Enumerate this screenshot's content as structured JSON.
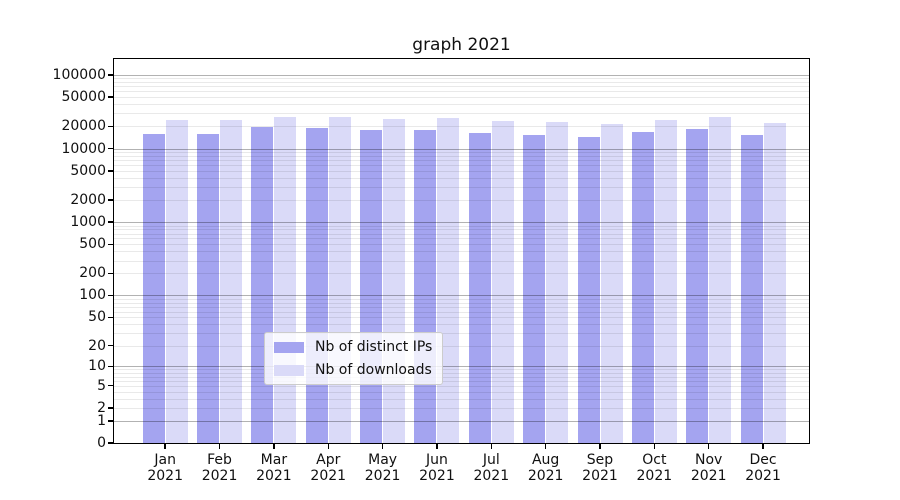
{
  "chart_data": {
    "type": "bar",
    "title": "graph 2021",
    "categories": [
      "Jan",
      "Feb",
      "Mar",
      "Apr",
      "May",
      "Jun",
      "Jul",
      "Aug",
      "Sep",
      "Oct",
      "Nov",
      "Dec"
    ],
    "x_tick_year": "2021",
    "series": [
      {
        "name": "Nb of distinct IPs",
        "color": "#a4a4f0",
        "values": [
          15900,
          15900,
          19600,
          18800,
          18000,
          17700,
          16200,
          15200,
          14600,
          16600,
          18400,
          15200
        ]
      },
      {
        "name": "Nb of downloads",
        "color": "#dadaf8",
        "values": [
          24400,
          24700,
          27300,
          26800,
          25200,
          25700,
          23600,
          22700,
          21800,
          24700,
          26800,
          22200
        ]
      }
    ],
    "y_scale": "symlog (log10 of 1+v)",
    "y_ticks": [
      0,
      1,
      2,
      5,
      10,
      20,
      50,
      100,
      200,
      500,
      1000,
      2000,
      5000,
      10000,
      20000,
      50000,
      100000
    ],
    "ylim": [
      0,
      165000
    ],
    "xlabel": "",
    "ylabel": "",
    "grid": true,
    "legend_position": "lower center, inside plot",
    "colors": {
      "grid_major": "rgba(0,0,0,0.30)",
      "grid_minor": "rgba(0,0,0,0.085)",
      "spine": "#000000",
      "background": "#ffffff"
    }
  }
}
